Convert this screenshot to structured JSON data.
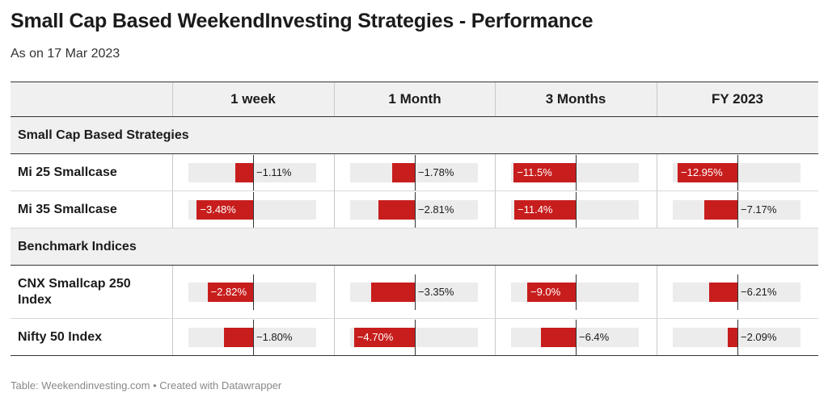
{
  "header": {
    "title": "Small Cap Based WeekendInvesting Strategies - Performance",
    "subtitle": "As on 17 Mar 2023"
  },
  "footer": {
    "text": "Table: Weekendinvesting.com • Created with Datawrapper"
  },
  "colors": {
    "bar": "#c71e1d",
    "track": "#ececec",
    "group_background": "#f0f0f0"
  },
  "chart_data": {
    "type": "table",
    "columns": [
      "1 week",
      "1 Month",
      "3 Months",
      "FY 2023"
    ],
    "axis_min": [
      -4,
      -5,
      -12,
      -14
    ],
    "groups": [
      {
        "label": "Small Cap Based Strategies",
        "rows": [
          {
            "name": "Mi 25 Smallcase",
            "values": [
              -1.11,
              -1.78,
              -11.5,
              -12.95
            ],
            "labels": [
              "−1.11%",
              "−1.78%",
              "−11.5%",
              "−12.95%"
            ]
          },
          {
            "name": "Mi 35 Smallcase",
            "values": [
              -3.48,
              -2.81,
              -11.4,
              -7.17
            ],
            "labels": [
              "−3.48%",
              "−2.81%",
              "−11.4%",
              "−7.17%"
            ]
          }
        ]
      },
      {
        "label": "Benchmark Indices",
        "rows": [
          {
            "name": "CNX Smallcap 250 Index",
            "values": [
              -2.82,
              -3.35,
              -9.0,
              -6.21
            ],
            "labels": [
              "−2.82%",
              "−3.35%",
              "−9.0%",
              "−6.21%"
            ]
          },
          {
            "name": "Nifty 50 Index",
            "values": [
              -1.8,
              -4.7,
              -6.4,
              -2.09
            ],
            "labels": [
              "−1.80%",
              "−4.70%",
              "−6.4%",
              "−2.09%"
            ]
          }
        ]
      }
    ]
  }
}
